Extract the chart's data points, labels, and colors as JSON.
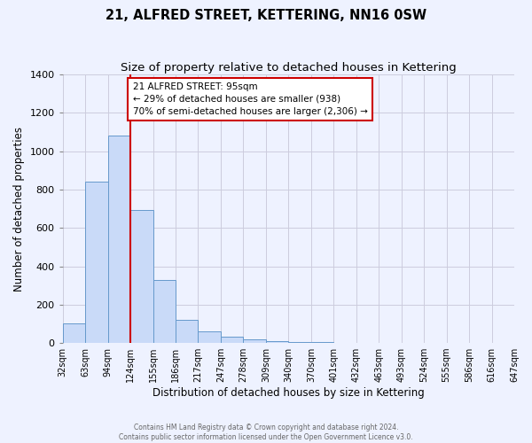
{
  "title": "21, ALFRED STREET, KETTERING, NN16 0SW",
  "subtitle": "Size of property relative to detached houses in Kettering",
  "xlabel": "Distribution of detached houses by size in Kettering",
  "ylabel": "Number of detached properties",
  "bin_labels": [
    "32sqm",
    "63sqm",
    "94sqm",
    "124sqm",
    "155sqm",
    "186sqm",
    "217sqm",
    "247sqm",
    "278sqm",
    "309sqm",
    "340sqm",
    "370sqm",
    "401sqm",
    "432sqm",
    "463sqm",
    "493sqm",
    "524sqm",
    "555sqm",
    "586sqm",
    "616sqm",
    "647sqm"
  ],
  "bar_heights": [
    100,
    840,
    1080,
    695,
    330,
    120,
    60,
    35,
    20,
    10,
    5,
    3,
    0,
    0,
    0,
    0,
    0,
    0,
    0,
    0
  ],
  "bar_color": "#c9daf8",
  "bar_edge_color": "#6699cc",
  "grid_color": "#ccccdd",
  "background_color": "#eef2ff",
  "red_line_after_bin": 2,
  "annotation_title": "21 ALFRED STREET: 95sqm",
  "annotation_line1": "← 29% of detached houses are smaller (938)",
  "annotation_line2": "70% of semi-detached houses are larger (2,306) →",
  "annotation_box_color": "#ffffff",
  "annotation_border_color": "#cc0000",
  "red_line_color": "#cc0000",
  "ylim": [
    0,
    1400
  ],
  "yticks": [
    0,
    200,
    400,
    600,
    800,
    1000,
    1200,
    1400
  ],
  "footer_line1": "Contains HM Land Registry data © Crown copyright and database right 2024.",
  "footer_line2": "Contains public sector information licensed under the Open Government Licence v3.0."
}
